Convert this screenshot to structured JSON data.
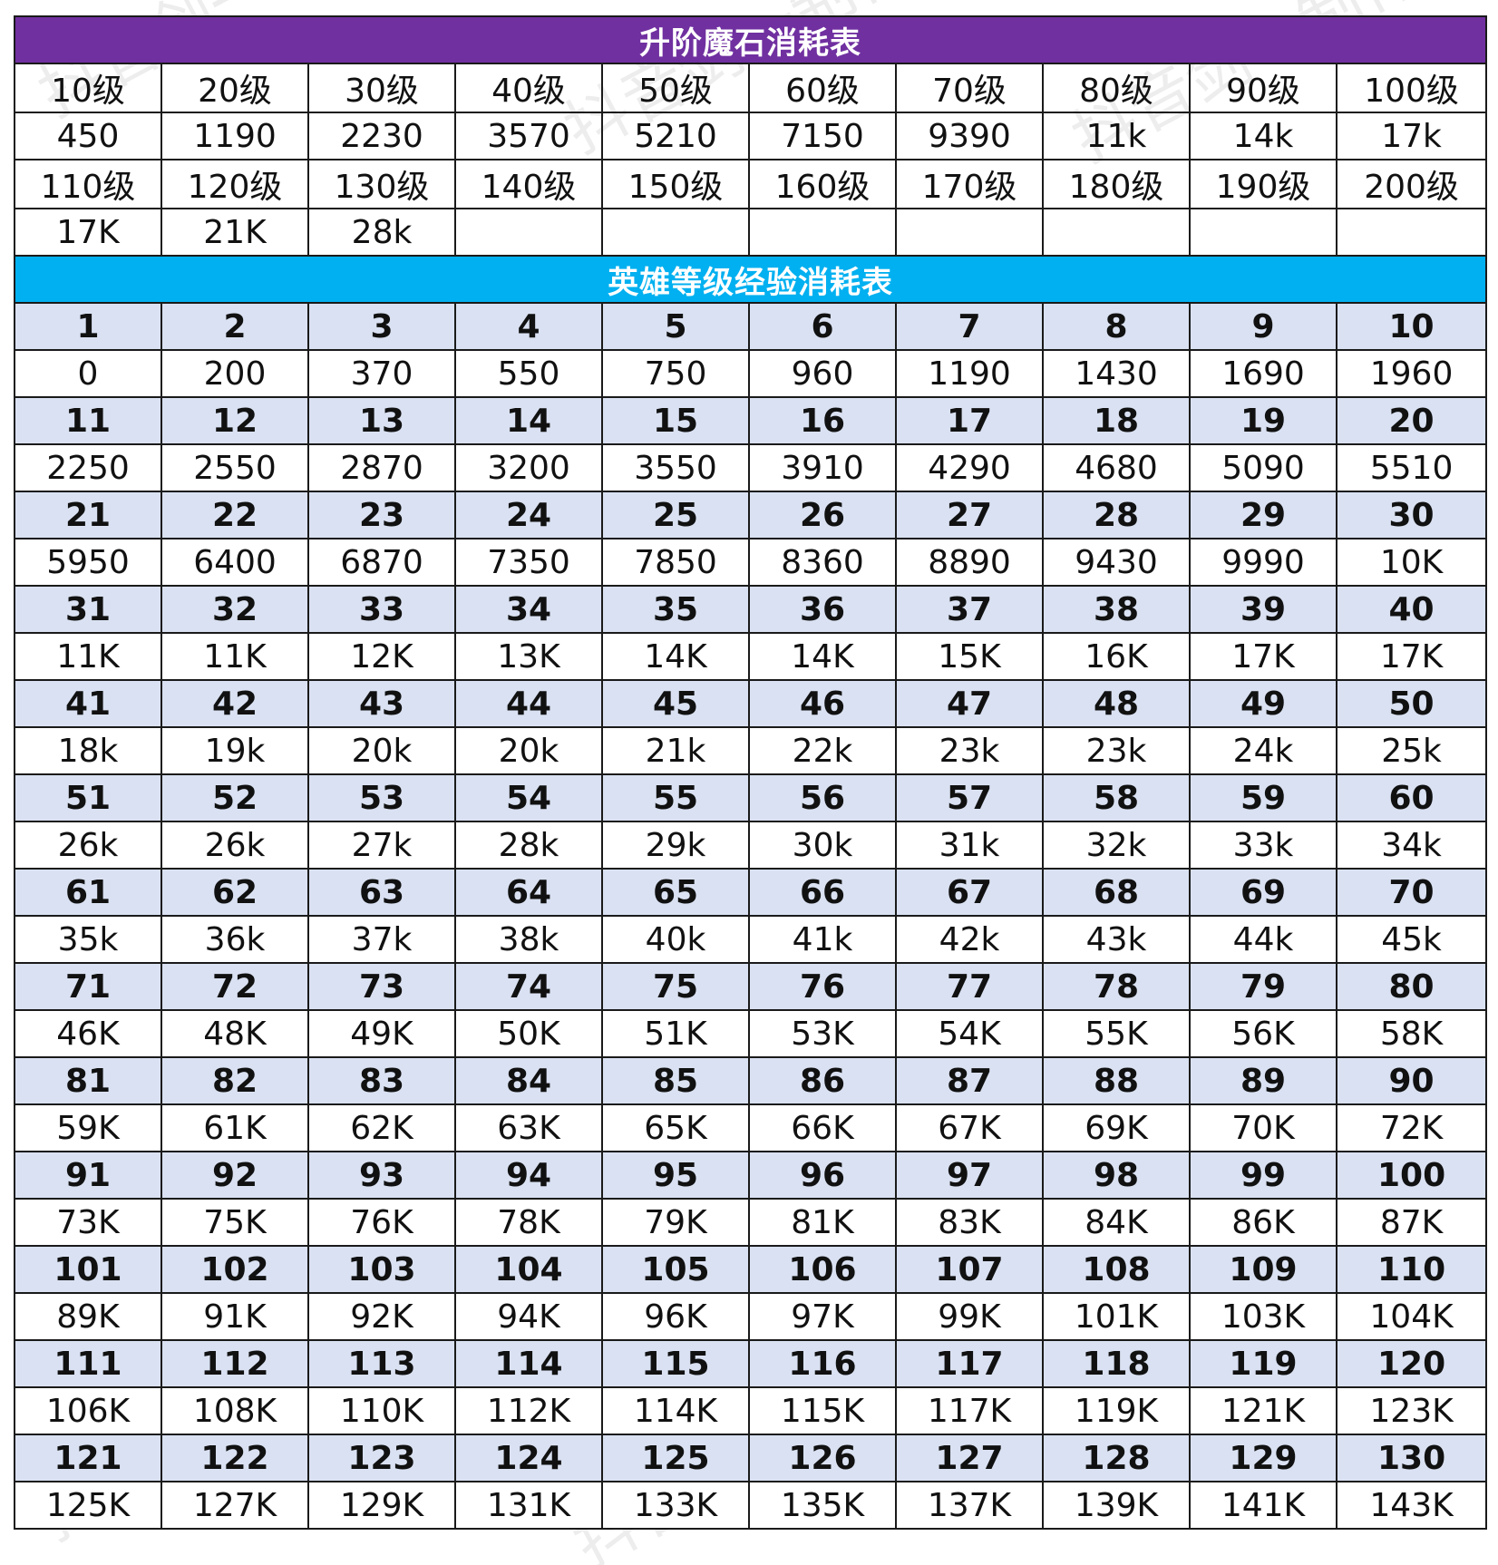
{
  "stone_table": {
    "title": "升阶魔石消耗表",
    "rows": [
      [
        "10级",
        "20级",
        "30级",
        "40级",
        "50级",
        "60级",
        "70级",
        "80级",
        "90级",
        "100级"
      ],
      [
        "450",
        "1190",
        "2230",
        "3570",
        "5210",
        "7150",
        "9390",
        "11k",
        "14k",
        "17k"
      ],
      [
        "110级",
        "120级",
        "130级",
        "140级",
        "150级",
        "160级",
        "170级",
        "180级",
        "190级",
        "200级"
      ],
      [
        "17K",
        "21K",
        "28k",
        "",
        "",
        "",
        "",
        "",
        "",
        ""
      ]
    ]
  },
  "hero_table": {
    "title": "英雄等级经验消耗表",
    "blocks": [
      {
        "levels": [
          "1",
          "2",
          "3",
          "4",
          "5",
          "6",
          "7",
          "8",
          "9",
          "10"
        ],
        "exp": [
          "0",
          "200",
          "370",
          "550",
          "750",
          "960",
          "1190",
          "1430",
          "1690",
          "1960"
        ]
      },
      {
        "levels": [
          "11",
          "12",
          "13",
          "14",
          "15",
          "16",
          "17",
          "18",
          "19",
          "20"
        ],
        "exp": [
          "2250",
          "2550",
          "2870",
          "3200",
          "3550",
          "3910",
          "4290",
          "4680",
          "5090",
          "5510"
        ]
      },
      {
        "levels": [
          "21",
          "22",
          "23",
          "24",
          "25",
          "26",
          "27",
          "28",
          "29",
          "30"
        ],
        "exp": [
          "5950",
          "6400",
          "6870",
          "7350",
          "7850",
          "8360",
          "8890",
          "9430",
          "9990",
          "10K"
        ]
      },
      {
        "levels": [
          "31",
          "32",
          "33",
          "34",
          "35",
          "36",
          "37",
          "38",
          "39",
          "40"
        ],
        "exp": [
          "11K",
          "11K",
          "12K",
          "13K",
          "14K",
          "14K",
          "15K",
          "16K",
          "17K",
          "17K"
        ]
      },
      {
        "levels": [
          "41",
          "42",
          "43",
          "44",
          "45",
          "46",
          "47",
          "48",
          "49",
          "50"
        ],
        "exp": [
          "18k",
          "19k",
          "20k",
          "20k",
          "21k",
          "22k",
          "23k",
          "23k",
          "24k",
          "25k"
        ]
      },
      {
        "levels": [
          "51",
          "52",
          "53",
          "54",
          "55",
          "56",
          "57",
          "58",
          "59",
          "60"
        ],
        "exp": [
          "26k",
          "26k",
          "27k",
          "28k",
          "29k",
          "30k",
          "31k",
          "32k",
          "33k",
          "34k"
        ]
      },
      {
        "levels": [
          "61",
          "62",
          "63",
          "64",
          "65",
          "66",
          "67",
          "68",
          "69",
          "70"
        ],
        "exp": [
          "35k",
          "36k",
          "37k",
          "38k",
          "40k",
          "41k",
          "42k",
          "43k",
          "44k",
          "45k"
        ]
      },
      {
        "levels": [
          "71",
          "72",
          "73",
          "74",
          "75",
          "76",
          "77",
          "78",
          "79",
          "80"
        ],
        "exp": [
          "46K",
          "48K",
          "49K",
          "50K",
          "51K",
          "53K",
          "54K",
          "55K",
          "56K",
          "58K"
        ]
      },
      {
        "levels": [
          "81",
          "82",
          "83",
          "84",
          "85",
          "86",
          "87",
          "88",
          "89",
          "90"
        ],
        "exp": [
          "59K",
          "61K",
          "62K",
          "63K",
          "65K",
          "66K",
          "67K",
          "69K",
          "70K",
          "72K"
        ]
      },
      {
        "levels": [
          "91",
          "92",
          "93",
          "94",
          "95",
          "96",
          "97",
          "98",
          "99",
          "100"
        ],
        "exp": [
          "73K",
          "75K",
          "76K",
          "78K",
          "79K",
          "81K",
          "83K",
          "84K",
          "86K",
          "87K"
        ]
      },
      {
        "levels": [
          "101",
          "102",
          "103",
          "104",
          "105",
          "106",
          "107",
          "108",
          "109",
          "110"
        ],
        "exp": [
          "89K",
          "91K",
          "92K",
          "94K",
          "96K",
          "97K",
          "99K",
          "101K",
          "103K",
          "104K"
        ]
      },
      {
        "levels": [
          "111",
          "112",
          "113",
          "114",
          "115",
          "116",
          "117",
          "118",
          "119",
          "120"
        ],
        "exp": [
          "106K",
          "108K",
          "110K",
          "112K",
          "114K",
          "115K",
          "117K",
          "119K",
          "121K",
          "123K"
        ]
      },
      {
        "levels": [
          "121",
          "122",
          "123",
          "124",
          "125",
          "126",
          "127",
          "128",
          "129",
          "130"
        ],
        "exp": [
          "125K",
          "127K",
          "129K",
          "131K",
          "133K",
          "135K",
          "137K",
          "139K",
          "141K",
          "143K"
        ]
      }
    ]
  },
  "watermark": "抖音剑一制作",
  "colors": {
    "stone_banner": "#7030a0",
    "hero_banner": "#00b0f0",
    "level_row_bg": "#d9e1f2"
  }
}
